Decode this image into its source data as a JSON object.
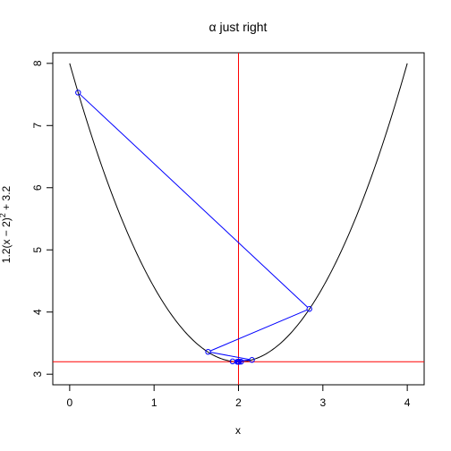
{
  "chart_data": {
    "type": "line",
    "title": "α just right",
    "xlabel": "x",
    "ylabel_parts": [
      "1.2(x − 2)",
      "2",
      " + 3.2"
    ],
    "xlim": [
      -0.2,
      4.2
    ],
    "ylim": [
      2.83,
      8.17
    ],
    "x_ticks": [
      0,
      1,
      2,
      3,
      4
    ],
    "y_ticks": [
      3,
      4,
      5,
      6,
      7,
      8
    ],
    "curve": {
      "a": 1.2,
      "h": 2,
      "k": 3.2,
      "x_range": [
        0,
        4
      ],
      "color": "#000000"
    },
    "vline": {
      "x": 2,
      "color": "#ff0000"
    },
    "hline": {
      "y": 3.2,
      "color": "#ff0000"
    },
    "path": {
      "color": "#0000ff",
      "points": [
        [
          0.1,
          7.53
        ],
        [
          2.84,
          4.05
        ],
        [
          1.64,
          3.36
        ],
        [
          2.16,
          3.23
        ],
        [
          1.93,
          3.206
        ],
        [
          2.03,
          3.201
        ],
        [
          1.985,
          3.2003
        ],
        [
          2.007,
          3.20006
        ],
        [
          1.997,
          3.20001
        ],
        [
          2.001,
          3.2
        ],
        [
          1.9995,
          3.2
        ],
        [
          2.0002,
          3.2
        ]
      ]
    },
    "grid": false,
    "legend": "none"
  }
}
